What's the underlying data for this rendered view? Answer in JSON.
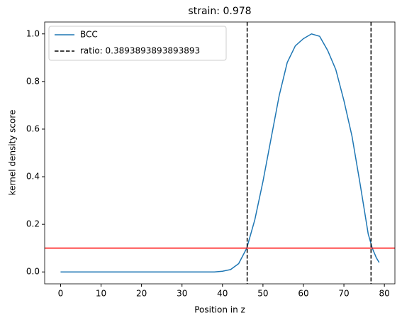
{
  "chart_data": {
    "type": "line",
    "title": "strain: 0.978",
    "x_label": "Position in z",
    "y_label": "kernel density score",
    "x": [
      0,
      10,
      20,
      30,
      38,
      40,
      42,
      44,
      46,
      48,
      50,
      52,
      54,
      56,
      58,
      60,
      62,
      64,
      66,
      68,
      70,
      72,
      74,
      76,
      77,
      78,
      78.7
    ],
    "series": [
      {
        "name": "BCC",
        "color": "#1f77b4",
        "values": [
          0,
          0,
          0,
          0,
          0,
          0.003,
          0.01,
          0.035,
          0.1,
          0.22,
          0.38,
          0.56,
          0.74,
          0.88,
          0.95,
          0.98,
          1.0,
          0.99,
          0.93,
          0.85,
          0.72,
          0.57,
          0.37,
          0.16,
          0.1,
          0.06,
          0.04
        ]
      }
    ],
    "vlines": {
      "name": "ratio: 0.3893893893893893",
      "color": "#000000",
      "values": [
        46.1,
        76.7
      ]
    },
    "hline": {
      "color": "#ff0000",
      "value": 0.1
    },
    "xlim": [
      -3.93,
      82.6
    ],
    "ylim": [
      -0.05,
      1.05
    ],
    "xticks": [
      0,
      10,
      20,
      30,
      40,
      50,
      60,
      70,
      80
    ],
    "yticks": [
      {
        "value": 0,
        "label": "0.0"
      },
      0.2,
      0.4,
      0.6,
      0.8,
      {
        "value": 1,
        "label": "1.0"
      }
    ],
    "legend": "upper left"
  }
}
